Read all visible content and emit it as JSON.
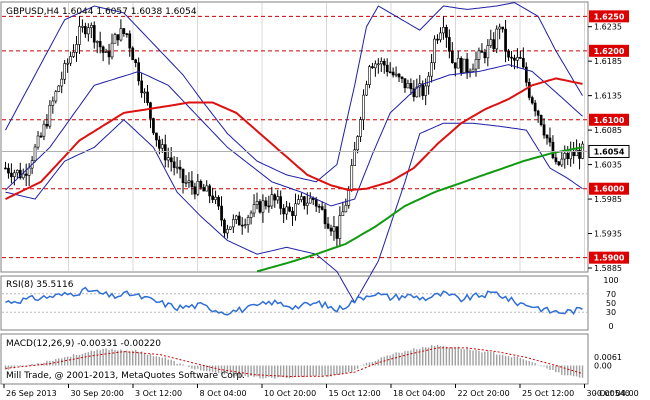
{
  "colors": {
    "background": "#ffffff",
    "frame": "#808080",
    "grid": "#d8d8d8",
    "candle": "#000000",
    "bollinger": "#1f1fa8",
    "ma_red": "#dd1111",
    "ma_green": "#119a11",
    "level_line": "#cc0000",
    "level_badge": "#dd0000",
    "price_badge": "#ffffff",
    "rsi": "#2f6fd6",
    "macd_hist": "#a0a0a0",
    "macd_signal": "#cc0000"
  },
  "chart_data": [
    {
      "type": "candlestick",
      "title": "GBPUSD,H4  1.6044 1.6057 1.6038 1.6054",
      "symbol": "GBPUSD,H4",
      "ohlc_header": "1.6044 1.6057 1.6038 1.6054",
      "ylim": [
        1.5885,
        1.6265
      ],
      "y_ticks": [
        "1.6235",
        "1.6185",
        "1.6135",
        "1.6085",
        "1.6035",
        "1.5985",
        "1.5935",
        "1.5885"
      ],
      "levels": [
        {
          "value": 1.625,
          "label": "1.6250"
        },
        {
          "value": 1.62,
          "label": "1.6200"
        },
        {
          "value": 1.61,
          "label": "1.6100"
        },
        {
          "value": 1.6,
          "label": "1.6000"
        },
        {
          "value": 1.59,
          "label": "1.5900"
        }
      ],
      "current_price": {
        "value": 1.6054,
        "label": "1.6054"
      },
      "x_labels": [
        "26 Sep 2013",
        "30 Sep 20:00",
        "3 Oct 12:00",
        "8 Oct 04:00",
        "10 Oct 20:00",
        "15 Oct 12:00",
        "18 Oct 04:00",
        "22 Oct 20:00",
        "25 Oct 12:00",
        "30 Oct 04:00"
      ],
      "n_bars": 196,
      "close_path": [
        [
          0,
          1.603
        ],
        [
          6,
          1.602
        ],
        [
          12,
          1.6075
        ],
        [
          18,
          1.615
        ],
        [
          25,
          1.6225
        ],
        [
          28,
          1.624
        ],
        [
          34,
          1.619
        ],
        [
          38,
          1.6225
        ],
        [
          41,
          1.6225
        ],
        [
          44,
          1.618
        ],
        [
          48,
          1.612
        ],
        [
          52,
          1.606
        ],
        [
          56,
          1.604
        ],
        [
          60,
          1.601
        ],
        [
          65,
          1.6
        ],
        [
          70,
          1.599
        ],
        [
          74,
          1.5945
        ],
        [
          80,
          1.5955
        ],
        [
          86,
          1.5975
        ],
        [
          90,
          1.5985
        ],
        [
          96,
          1.5965
        ],
        [
          100,
          1.598
        ],
        [
          104,
          1.5985
        ],
        [
          108,
          1.596
        ],
        [
          112,
          1.5935
        ],
        [
          116,
          1.5995
        ],
        [
          120,
          1.611
        ],
        [
          123,
          1.6185
        ],
        [
          128,
          1.618
        ],
        [
          132,
          1.616
        ],
        [
          137,
          1.6145
        ],
        [
          142,
          1.614
        ],
        [
          145,
          1.6215
        ],
        [
          148,
          1.6245
        ],
        [
          151,
          1.6185
        ],
        [
          156,
          1.6175
        ],
        [
          160,
          1.619
        ],
        [
          165,
          1.621
        ],
        [
          167,
          1.624
        ],
        [
          170,
          1.6185
        ],
        [
          174,
          1.6185
        ],
        [
          177,
          1.614
        ],
        [
          181,
          1.61
        ],
        [
          184,
          1.606
        ],
        [
          186,
          1.603
        ],
        [
          189,
          1.6045
        ],
        [
          192,
          1.605
        ],
        [
          195,
          1.6054
        ]
      ],
      "bollinger": {
        "upper": [
          [
            0,
            1.6085
          ],
          [
            20,
            1.6245
          ],
          [
            30,
            1.6265
          ],
          [
            40,
            1.6255
          ],
          [
            50,
            1.621
          ],
          [
            60,
            1.6165
          ],
          [
            66,
            1.613
          ],
          [
            75,
            1.608
          ],
          [
            85,
            1.604
          ],
          [
            95,
            1.602
          ],
          [
            105,
            1.601
          ],
          [
            112,
            1.6035
          ],
          [
            118,
            1.615
          ],
          [
            122,
            1.6235
          ],
          [
            126,
            1.6265
          ],
          [
            132,
            1.625
          ],
          [
            140,
            1.623
          ],
          [
            148,
            1.6265
          ],
          [
            156,
            1.626
          ],
          [
            166,
            1.6265
          ],
          [
            172,
            1.627
          ],
          [
            180,
            1.625
          ],
          [
            186,
            1.62
          ],
          [
            195,
            1.6135
          ]
        ],
        "middle": [
          [
            0,
            1.5998
          ],
          [
            15,
            1.606
          ],
          [
            30,
            1.615
          ],
          [
            45,
            1.617
          ],
          [
            55,
            1.615
          ],
          [
            65,
            1.6105
          ],
          [
            75,
            1.606
          ],
          [
            90,
            1.601
          ],
          [
            100,
            1.5995
          ],
          [
            110,
            1.5975
          ],
          [
            118,
            1.5985
          ],
          [
            124,
            1.605
          ],
          [
            130,
            1.611
          ],
          [
            140,
            1.615
          ],
          [
            150,
            1.6165
          ],
          [
            160,
            1.617
          ],
          [
            170,
            1.618
          ],
          [
            178,
            1.617
          ],
          [
            186,
            1.614
          ],
          [
            195,
            1.6105
          ]
        ],
        "lower": [
          [
            0,
            1.5995
          ],
          [
            10,
            1.5985
          ],
          [
            20,
            1.604
          ],
          [
            30,
            1.606
          ],
          [
            40,
            1.61
          ],
          [
            50,
            1.606
          ],
          [
            58,
            1.5995
          ],
          [
            66,
            1.596
          ],
          [
            75,
            1.5925
          ],
          [
            85,
            1.5905
          ],
          [
            95,
            1.5915
          ],
          [
            105,
            1.5905
          ],
          [
            112,
            1.588
          ],
          [
            118,
            1.5835
          ],
          [
            126,
            1.5895
          ],
          [
            135,
            1.601
          ],
          [
            140,
            1.608
          ],
          [
            148,
            1.6095
          ],
          [
            158,
            1.6095
          ],
          [
            168,
            1.609
          ],
          [
            176,
            1.6085
          ],
          [
            184,
            1.603
          ],
          [
            190,
            1.6015
          ],
          [
            195,
            1.6
          ]
        ]
      },
      "ma_red": [
        [
          0,
          1.5985
        ],
        [
          12,
          1.601
        ],
        [
          25,
          1.607
        ],
        [
          40,
          1.611
        ],
        [
          55,
          1.612
        ],
        [
          62,
          1.6125
        ],
        [
          70,
          1.6125
        ],
        [
          78,
          1.611
        ],
        [
          86,
          1.608
        ],
        [
          94,
          1.605
        ],
        [
          102,
          1.602
        ],
        [
          110,
          1.6005
        ],
        [
          116,
          1.5998
        ],
        [
          122,
          1.6
        ],
        [
          130,
          1.601
        ],
        [
          138,
          1.603
        ],
        [
          146,
          1.6065
        ],
        [
          154,
          1.6095
        ],
        [
          162,
          1.6115
        ],
        [
          170,
          1.613
        ],
        [
          178,
          1.615
        ],
        [
          186,
          1.616
        ],
        [
          195,
          1.6152
        ]
      ],
      "ma_green": [
        [
          85,
          1.588
        ],
        [
          95,
          1.5892
        ],
        [
          105,
          1.5905
        ],
        [
          115,
          1.592
        ],
        [
          125,
          1.5945
        ],
        [
          135,
          1.5975
        ],
        [
          145,
          1.5995
        ],
        [
          155,
          1.601
        ],
        [
          165,
          1.6025
        ],
        [
          175,
          1.604
        ],
        [
          185,
          1.6052
        ],
        [
          195,
          1.606
        ]
      ]
    },
    {
      "type": "line",
      "title": "RSI(8) 35.5116",
      "ylim": [
        0,
        100
      ],
      "y_ticks": [
        "100",
        "70",
        "50",
        "30",
        "0"
      ],
      "series": [
        {
          "values": [
            [
              0,
              52
            ],
            [
              10,
              60
            ],
            [
              20,
              68
            ],
            [
              28,
              78
            ],
            [
              36,
              64
            ],
            [
              42,
              70
            ],
            [
              50,
              55
            ],
            [
              58,
              40
            ],
            [
              66,
              45
            ],
            [
              74,
              30
            ],
            [
              82,
              38
            ],
            [
              90,
              52
            ],
            [
              98,
              42
            ],
            [
              106,
              50
            ],
            [
              112,
              35
            ],
            [
              118,
              55
            ],
            [
              124,
              72
            ],
            [
              130,
              62
            ],
            [
              136,
              66
            ],
            [
              142,
              60
            ],
            [
              148,
              70
            ],
            [
              154,
              58
            ],
            [
              160,
              66
            ],
            [
              166,
              72
            ],
            [
              172,
              52
            ],
            [
              178,
              44
            ],
            [
              184,
              32
            ],
            [
              188,
              30
            ],
            [
              192,
              33
            ],
            [
              195,
              36
            ]
          ]
        }
      ]
    },
    {
      "type": "bar",
      "title": "MACD(12,26,9) -0.00331 -0.00220",
      "ylim": [
        -0.0045,
        0.0075
      ],
      "y_ticks": [
        "0.0061",
        "0.00",
        "-0.00540"
      ],
      "histogram": [
        [
          0,
          -0.001
        ],
        [
          12,
          0.0008
        ],
        [
          24,
          0.003
        ],
        [
          34,
          0.0045
        ],
        [
          44,
          0.004
        ],
        [
          54,
          0.002
        ],
        [
          62,
          -0.0005
        ],
        [
          70,
          -0.002
        ],
        [
          80,
          -0.003
        ],
        [
          90,
          -0.0035
        ],
        [
          100,
          -0.003
        ],
        [
          110,
          -0.0028
        ],
        [
          116,
          -0.002
        ],
        [
          122,
          0.0005
        ],
        [
          130,
          0.003
        ],
        [
          140,
          0.0048
        ],
        [
          146,
          0.0055
        ],
        [
          152,
          0.005
        ],
        [
          160,
          0.004
        ],
        [
          168,
          0.003
        ],
        [
          176,
          0.0015
        ],
        [
          182,
          -0.0005
        ],
        [
          188,
          -0.0025
        ],
        [
          195,
          -0.0033
        ]
      ],
      "signal": [
        [
          0,
          -0.0008
        ],
        [
          15,
          0.0005
        ],
        [
          28,
          0.0025
        ],
        [
          40,
          0.0038
        ],
        [
          52,
          0.003
        ],
        [
          62,
          0.001
        ],
        [
          72,
          -0.001
        ],
        [
          84,
          -0.0025
        ],
        [
          96,
          -0.003
        ],
        [
          108,
          -0.0029
        ],
        [
          118,
          -0.0018
        ],
        [
          126,
          0.0008
        ],
        [
          136,
          0.003
        ],
        [
          146,
          0.0048
        ],
        [
          156,
          0.0048
        ],
        [
          166,
          0.0038
        ],
        [
          176,
          0.0022
        ],
        [
          186,
          0.0
        ],
        [
          195,
          -0.0022
        ]
      ]
    }
  ],
  "watermark": "Mill Trade, @ 2001-2013, MetaQuotes Software Corp."
}
